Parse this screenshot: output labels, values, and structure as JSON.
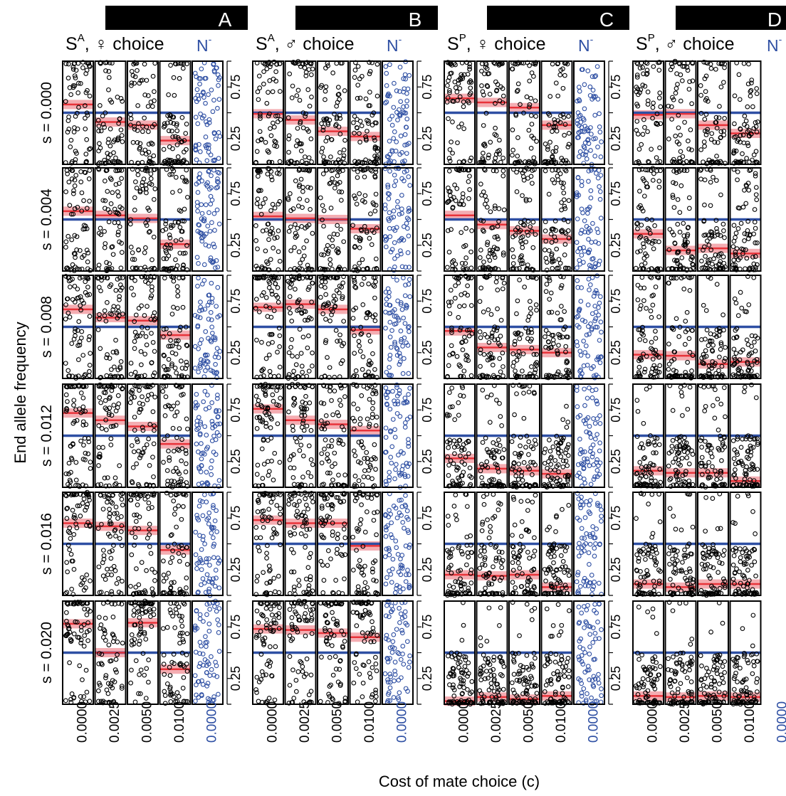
{
  "figure": {
    "ylabel": "End allele frequency",
    "xlabel": "Cost of mate choice (c)",
    "neutral_marker": "N",
    "neutral_marker_sup": "-",
    "neutral_color": "#2e4fa3",
    "mean_color": "#e8333a",
    "ci_color": "#f08a92",
    "reference_line_color": "#2e4fa3"
  },
  "chart_data": {
    "type": "scatter",
    "panels": [
      {
        "letter": "A",
        "label_main": "S",
        "label_sup": "A",
        "label_rest": ", ♀ choice"
      },
      {
        "letter": "B",
        "label_main": "S",
        "label_sup": "A",
        "label_rest": ", ♂ choice"
      },
      {
        "letter": "C",
        "label_main": "S",
        "label_sup": "P",
        "label_rest": ", ♀ choice"
      },
      {
        "letter": "D",
        "label_main": "S",
        "label_sup": "P",
        "label_rest": ", ♂ choice"
      }
    ],
    "row_labels": [
      "s = 0.000",
      "s = 0.004",
      "s = 0.008",
      "s = 0.012",
      "s = 0.016",
      "s = 0.020"
    ],
    "x_categories": [
      "0.0000",
      "0.0025",
      "0.0050",
      "0.0100",
      "0.0000"
    ],
    "x_category_groups": [
      "choice",
      "choice",
      "choice",
      "choice",
      "neutral"
    ],
    "y_ticks": [
      "0.25",
      "0.75"
    ],
    "ylim": [
      0,
      1
    ],
    "reference_line": 0.5,
    "mean_frequency": [
      [
        [
          0.58,
          0.41,
          0.38,
          0.23
        ],
        [
          0.58,
          0.54,
          0.51,
          0.26
        ],
        [
          0.67,
          0.59,
          0.56,
          0.42
        ],
        [
          0.72,
          0.65,
          0.59,
          0.42
        ],
        [
          0.7,
          0.67,
          0.63,
          0.44
        ],
        [
          0.78,
          0.5,
          0.79,
          0.34
        ]
      ],
      [
        [
          0.49,
          0.43,
          0.32,
          0.27
        ],
        [
          0.53,
          0.51,
          0.5,
          0.41
        ],
        [
          0.69,
          0.72,
          0.67,
          0.47
        ],
        [
          0.76,
          0.65,
          0.61,
          0.55
        ],
        [
          0.73,
          0.7,
          0.7,
          0.48
        ],
        [
          0.73,
          0.72,
          0.69,
          0.65
        ]
      ],
      [
        [
          0.64,
          0.6,
          0.55,
          0.38
        ],
        [
          0.54,
          0.45,
          0.39,
          0.31
        ],
        [
          0.46,
          0.3,
          0.28,
          0.25
        ],
        [
          0.28,
          0.18,
          0.16,
          0.13
        ],
        [
          0.2,
          0.19,
          0.2,
          0.08
        ],
        [
          0.03,
          0.07,
          0.05,
          0.08
        ]
      ],
      [
        [
          0.48,
          0.49,
          0.38,
          0.3
        ],
        [
          0.36,
          0.2,
          0.22,
          0.17
        ],
        [
          0.23,
          0.22,
          0.14,
          0.16
        ],
        [
          0.16,
          0.14,
          0.14,
          0.06
        ],
        [
          0.11,
          0.08,
          0.11,
          0.11
        ],
        [
          0.08,
          0.07,
          0.08,
          0.07
        ]
      ]
    ]
  }
}
